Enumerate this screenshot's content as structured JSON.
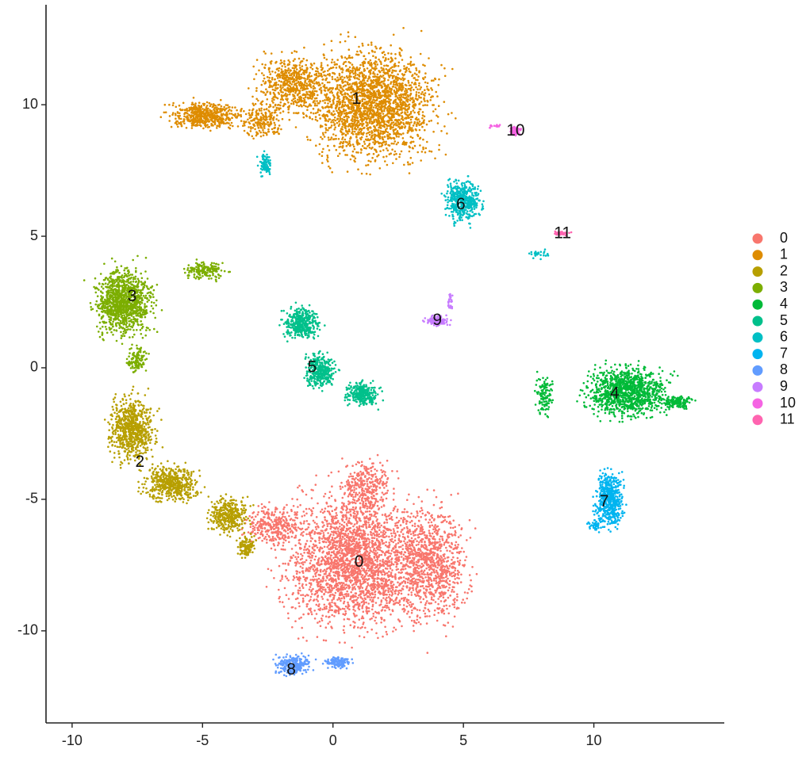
{
  "chart_data": {
    "type": "scatter",
    "title": "",
    "xlabel": "",
    "ylabel": "",
    "xlim": [
      -11,
      15
    ],
    "ylim": [
      -13.5,
      13.8
    ],
    "x_ticks": [
      -10,
      -5,
      0,
      5,
      10
    ],
    "y_ticks": [
      -10,
      -5,
      0,
      5,
      10
    ],
    "grid": false,
    "legend_position": "right",
    "point_size": "small",
    "clusters": [
      {
        "name": "0",
        "color": "#F8766D",
        "label_x": 1.0,
        "label_y": -7.4
      },
      {
        "name": "1",
        "color": "#DE8C00",
        "label_x": 0.9,
        "label_y": 10.2
      },
      {
        "name": "2",
        "color": "#B79F00",
        "label_x": -7.4,
        "label_y": -3.6
      },
      {
        "name": "3",
        "color": "#7CAE00",
        "label_x": -7.7,
        "label_y": 2.7
      },
      {
        "name": "4",
        "color": "#00BA38",
        "label_x": 10.8,
        "label_y": -1.0
      },
      {
        "name": "5",
        "color": "#00C08B",
        "label_x": -0.8,
        "label_y": 0.0
      },
      {
        "name": "6",
        "color": "#00BFC4",
        "label_x": 4.9,
        "label_y": 6.2
      },
      {
        "name": "7",
        "color": "#00B4F0",
        "label_x": 10.4,
        "label_y": -5.1
      },
      {
        "name": "8",
        "color": "#619CFF",
        "label_x": -1.6,
        "label_y": -11.5
      },
      {
        "name": "9",
        "color": "#C77CFF",
        "label_x": 4.0,
        "label_y": 1.8
      },
      {
        "name": "10",
        "color": "#F564E3",
        "label_x": 7.0,
        "label_y": 9.0
      },
      {
        "name": "11",
        "color": "#FF64B0",
        "label_x": 8.8,
        "label_y": 5.1
      }
    ]
  }
}
